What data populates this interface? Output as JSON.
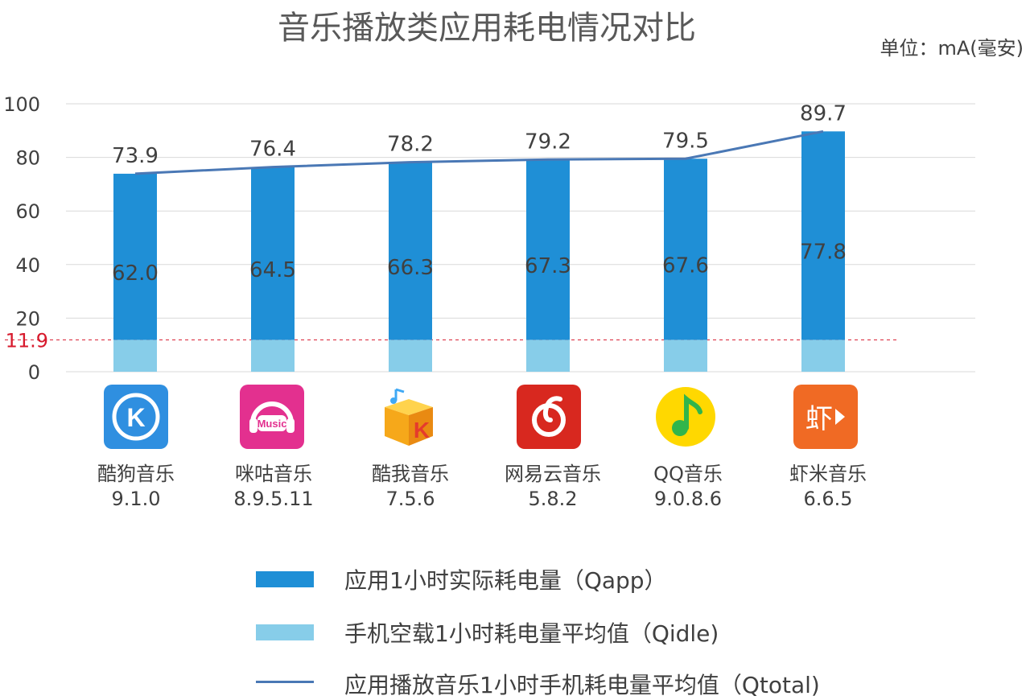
{
  "title": "音乐播放类应用耗电情况对比",
  "unit": "单位：mA(毫安)",
  "colors": {
    "app_bar": "#1f8fd6",
    "idle_bar": "#87cde9",
    "total_line": "#4a78b5",
    "idle_ref": "#d7192c",
    "grid": "#d9d9d9"
  },
  "chart_data": {
    "type": "bar",
    "title": "音乐播放类应用耗电情况对比",
    "unit": "单位：mA(毫安)",
    "categories": [
      "酷狗音乐 9.1.0",
      "咪咕音乐 8.9.5.11",
      "酷我音乐 7.5.6",
      "网易云音乐 5.8.2",
      "QQ音乐 9.0.8.6",
      "虾米音乐 6.6.5"
    ],
    "ylim": [
      0,
      100
    ],
    "yticks": [
      "0",
      "20",
      "40",
      "60",
      "80",
      "100"
    ],
    "idle_reference": {
      "value": 11.9,
      "label": "11.9"
    },
    "stacked": true,
    "series": [
      {
        "name": "手机空载1小时耗电量平均值（Qidle)",
        "type": "bar",
        "values": [
          11.9,
          11.9,
          11.9,
          11.9,
          11.9,
          11.9
        ]
      },
      {
        "name": "应用1小时实际耗电量（Qapp）",
        "type": "bar",
        "values": [
          62.0,
          64.5,
          66.3,
          67.3,
          67.6,
          77.8
        ],
        "labels": [
          "62.0",
          "64.5",
          "66.3",
          "67.3",
          "67.6",
          "77.8"
        ]
      },
      {
        "name": "应用播放音乐1小时手机耗电量平均值（Qtotal)",
        "type": "line",
        "values": [
          73.9,
          76.4,
          78.2,
          79.2,
          79.5,
          89.7
        ],
        "labels": [
          "73.9",
          "76.4",
          "78.2",
          "79.2",
          "79.5",
          "89.7"
        ]
      }
    ],
    "grid": true,
    "legend": "bottom"
  },
  "apps": [
    {
      "name": "酷狗音乐",
      "version": "9.1.0",
      "icon": "kugou-icon",
      "icon_bg": "#2f8fe0"
    },
    {
      "name": "咪咕音乐",
      "version": "8.9.5.11",
      "icon": "migu-music-icon",
      "icon_bg": "#e3308f"
    },
    {
      "name": "酷我音乐",
      "version": "7.5.6",
      "icon": "kuwo-icon",
      "icon_bg": "#f6b21a"
    },
    {
      "name": "网易云音乐",
      "version": "5.8.2",
      "icon": "netease-cloud-icon",
      "icon_bg": "#d8281f"
    },
    {
      "name": "QQ音乐",
      "version": "9.0.8.6",
      "icon": "qq-music-icon",
      "icon_bg": "#ffd800"
    },
    {
      "name": "虾米音乐",
      "version": "6.6.5",
      "icon": "xiami-icon",
      "icon_bg": "#f06a24"
    }
  ],
  "icon_text": {
    "kugou": "K",
    "migu": "Music",
    "kuwo": "K",
    "xiami": "虾"
  },
  "legend": {
    "app": "应用1小时实际耗电量（Qapp）",
    "idle": "手机空载1小时耗电量平均值（Qidle)",
    "total": "应用播放音乐1小时手机耗电量平均值（Qtotal)"
  }
}
